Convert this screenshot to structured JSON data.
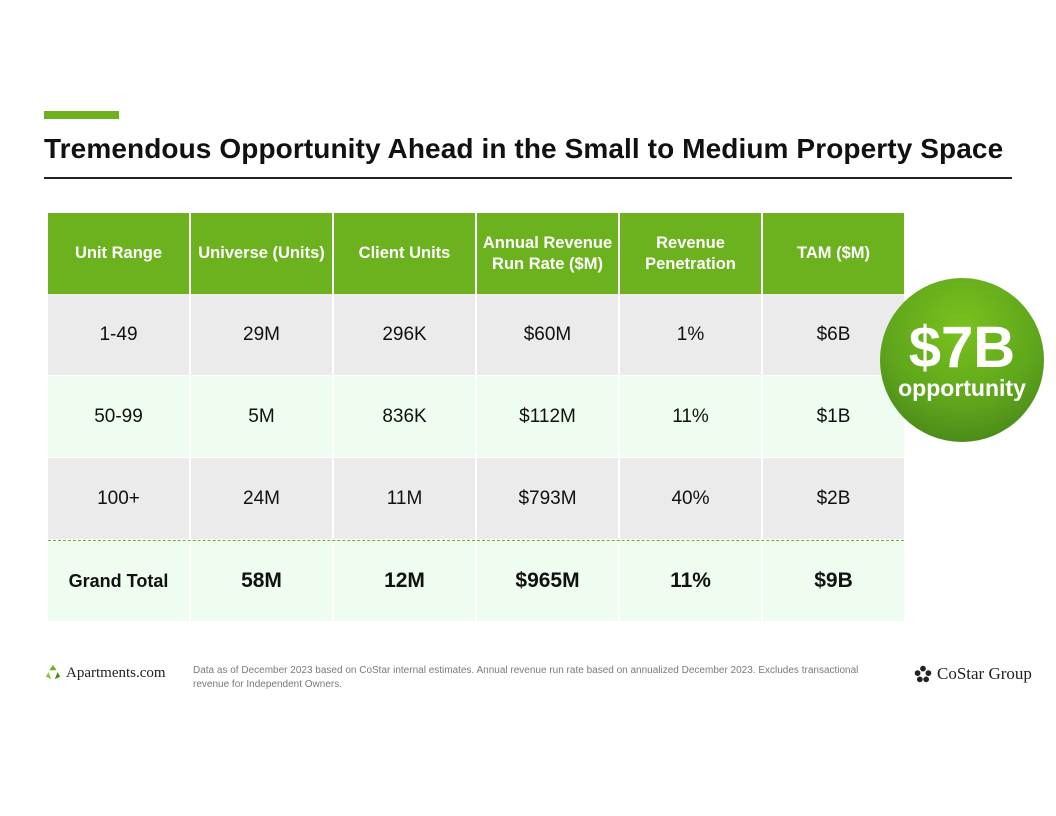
{
  "title": "Tremendous Opportunity Ahead in the Small to Medium Property Space",
  "table": {
    "headers": [
      "Unit Range",
      "Universe (Units)",
      "Client Units",
      "Annual Revenue Run Rate ($M)",
      "Revenue Penetration",
      "TAM ($M)"
    ],
    "rows": [
      [
        "1-49",
        "29M",
        "296K",
        "$60M",
        "1%",
        "$6B"
      ],
      [
        "50-99",
        "5M",
        "836K",
        "$112M",
        "11%",
        "$1B"
      ],
      [
        "100+",
        "24M",
        "11M",
        "$793M",
        "40%",
        "$2B"
      ]
    ],
    "total": [
      "Grand Total",
      "58M",
      "12M",
      "$965M",
      "11%",
      "$9B"
    ]
  },
  "badge": {
    "value": "$7B",
    "label": "opportunity"
  },
  "footnote": "Data as of December 2023 based on CoStar internal estimates. Annual revenue run rate based on annualized December 2023. Excludes transactional revenue for Independent Owners.",
  "logos": {
    "left": "Apartments.com",
    "right": "CoStar Group"
  },
  "colors": {
    "accent": "#6cb21f",
    "row_gray": "#ebebeb",
    "row_mint": "#effdf0"
  }
}
